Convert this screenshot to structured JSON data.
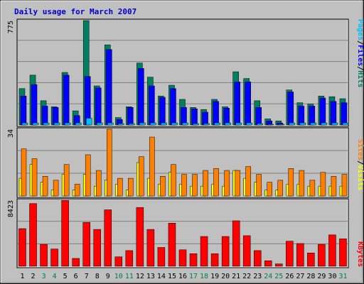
{
  "title": "Daily usage for March 2007",
  "colors": {
    "background": "#c0c0c0",
    "title": "#0000cc",
    "hits": "#008060",
    "files": "#0000ff",
    "pages": "#00c0ff",
    "visits": "#ffff00",
    "sites": "#ff8000",
    "kbytes": "#ff0000",
    "weekend_label": "#008040",
    "weekday_label": "#000000"
  },
  "chart_data": [
    {
      "type": "bar",
      "name": "hits-files-pages",
      "axis_max_label": "775",
      "ylim": [
        0,
        775
      ],
      "legend": [
        {
          "label": "Hits",
          "color": "#008060"
        },
        {
          "label": "Files",
          "color": "#0000ff"
        },
        {
          "label": "Pages",
          "color": "#00c0ff"
        }
      ],
      "categories": [
        "1",
        "2",
        "3",
        "4",
        "5",
        "6",
        "7",
        "8",
        "9",
        "10",
        "11",
        "12",
        "13",
        "14",
        "15",
        "16",
        "17",
        "18",
        "19",
        "20",
        "21",
        "22",
        "23",
        "24",
        "25",
        "26",
        "27",
        "28",
        "29",
        "30",
        "31"
      ],
      "series": [
        {
          "name": "Hits",
          "values": [
            270,
            370,
            180,
            135,
            390,
            105,
            775,
            290,
            595,
            55,
            135,
            460,
            355,
            215,
            295,
            190,
            130,
            115,
            190,
            135,
            395,
            345,
            180,
            45,
            30,
            260,
            165,
            155,
            215,
            210,
            195
          ]
        },
        {
          "name": "Files",
          "values": [
            215,
            300,
            140,
            130,
            370,
            70,
            360,
            275,
            560,
            40,
            130,
            420,
            290,
            205,
            270,
            130,
            120,
            95,
            175,
            125,
            320,
            320,
            130,
            30,
            15,
            245,
            140,
            140,
            200,
            175,
            165
          ]
        },
        {
          "name": "Pages",
          "values": [
            15,
            15,
            15,
            15,
            15,
            15,
            50,
            15,
            15,
            10,
            10,
            15,
            15,
            15,
            15,
            15,
            10,
            10,
            15,
            15,
            15,
            15,
            10,
            5,
            5,
            15,
            15,
            15,
            15,
            15,
            15
          ]
        }
      ]
    },
    {
      "type": "bar",
      "name": "visits-sites",
      "axis_max_label": "34",
      "ylim": [
        0,
        34
      ],
      "legend": [
        {
          "label": "Visits",
          "color": "#ffff00"
        },
        {
          "label": "Sites",
          "color": "#ff8000"
        }
      ],
      "categories": [
        "1",
        "2",
        "3",
        "4",
        "5",
        "6",
        "7",
        "8",
        "9",
        "10",
        "11",
        "12",
        "13",
        "14",
        "15",
        "16",
        "17",
        "18",
        "19",
        "20",
        "21",
        "22",
        "23",
        "24",
        "25",
        "26",
        "27",
        "28",
        "29",
        "30",
        "31"
      ],
      "series": [
        {
          "name": "Visits",
          "values": [
            9,
            16,
            7,
            3,
            11,
            3,
            11,
            5,
            8,
            6,
            3,
            17,
            9,
            6,
            12,
            6,
            5,
            5,
            6,
            5,
            13,
            9,
            7,
            3,
            3,
            6,
            6,
            5,
            5,
            5,
            5
          ]
        },
        {
          "name": "Sites",
          "values": [
            24,
            19,
            10,
            8,
            16,
            6,
            21,
            13,
            34,
            9,
            9,
            20,
            30,
            10,
            16,
            11,
            11,
            13,
            14,
            13,
            13,
            15,
            11,
            7,
            8,
            14,
            13,
            8,
            12,
            10,
            11
          ]
        }
      ]
    },
    {
      "type": "bar",
      "name": "kbytes",
      "axis_max_label": "8423",
      "ylim": [
        0,
        8423
      ],
      "legend": [
        {
          "label": "KBytes",
          "color": "#ff0000"
        }
      ],
      "categories": [
        "1",
        "2",
        "3",
        "4",
        "5",
        "6",
        "7",
        "8",
        "9",
        "10",
        "11",
        "12",
        "13",
        "14",
        "15",
        "16",
        "17",
        "18",
        "19",
        "20",
        "21",
        "22",
        "23",
        "24",
        "25",
        "26",
        "27",
        "28",
        "29",
        "30",
        "31"
      ],
      "series": [
        {
          "name": "KBytes",
          "values": [
            4800,
            8000,
            2800,
            2200,
            8400,
            1000,
            5600,
            4700,
            7200,
            1200,
            2000,
            7500,
            4700,
            2400,
            5500,
            2100,
            1600,
            3800,
            1600,
            3800,
            5800,
            3900,
            2000,
            700,
            300,
            3200,
            2900,
            1700,
            2800,
            4000,
            3500
          ]
        }
      ]
    }
  ],
  "x_labels": [
    {
      "text": "1",
      "weekend": false
    },
    {
      "text": "2",
      "weekend": false
    },
    {
      "text": "3",
      "weekend": true
    },
    {
      "text": "4",
      "weekend": true
    },
    {
      "text": "5",
      "weekend": false
    },
    {
      "text": "6",
      "weekend": false
    },
    {
      "text": "7",
      "weekend": false
    },
    {
      "text": "8",
      "weekend": false
    },
    {
      "text": "9",
      "weekend": false
    },
    {
      "text": "10",
      "weekend": true
    },
    {
      "text": "11",
      "weekend": true
    },
    {
      "text": "12",
      "weekend": false
    },
    {
      "text": "13",
      "weekend": false
    },
    {
      "text": "14",
      "weekend": false
    },
    {
      "text": "15",
      "weekend": false
    },
    {
      "text": "16",
      "weekend": false
    },
    {
      "text": "17",
      "weekend": true
    },
    {
      "text": "18",
      "weekend": true
    },
    {
      "text": "19",
      "weekend": false
    },
    {
      "text": "20",
      "weekend": false
    },
    {
      "text": "21",
      "weekend": false
    },
    {
      "text": "22",
      "weekend": false
    },
    {
      "text": "23",
      "weekend": false
    },
    {
      "text": "24",
      "weekend": true
    },
    {
      "text": "25",
      "weekend": true
    },
    {
      "text": "26",
      "weekend": false
    },
    {
      "text": "27",
      "weekend": false
    },
    {
      "text": "28",
      "weekend": false
    },
    {
      "text": "29",
      "weekend": false
    },
    {
      "text": "30",
      "weekend": false
    },
    {
      "text": "31",
      "weekend": true
    }
  ]
}
